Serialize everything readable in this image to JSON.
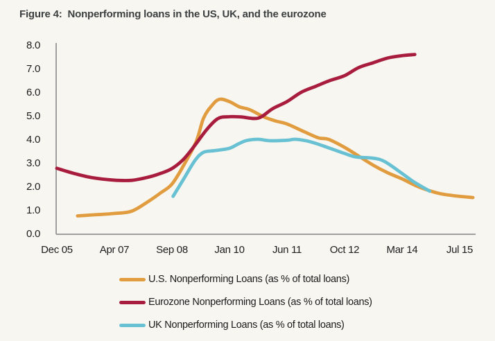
{
  "title": "Figure 4:  Nonperforming loans in the US, UK, and the eurozone",
  "colors": {
    "background": "#F8F6F1",
    "title_text": "#3C4040",
    "axis_line": "#9E9E9E",
    "axis_text": "#1C1C1C",
    "us_line": "#E09C3E",
    "eurozone_line": "#A81C3D",
    "uk_line": "#68C1D3"
  },
  "chart_data": {
    "type": "line",
    "title": "Figure 4: Nonperforming loans in the US, UK, and the eurozone",
    "xlabel": "",
    "ylabel": "",
    "ylim": [
      0,
      8
    ],
    "y_tick_labels": [
      "0.0",
      "1.0",
      "2.0",
      "3.0",
      "4.0",
      "5.0",
      "6.0",
      "7.0",
      "8.0"
    ],
    "x_tick_labels": [
      "Dec 05",
      "Apr 07",
      "Sep 08",
      "Jan 10",
      "Jun 11",
      "Oct 12",
      "Mar 14",
      "Jul 15"
    ],
    "x_unit_note": "x values of points are in x-axis tick intervals: 0 = Dec 05, 1 = Apr 07, ... 7 = Jul 15; values are percent of total loans",
    "grid": false,
    "legend_position": "bottom",
    "series": [
      {
        "name": "U.S. Nonperforming Loans (as % of total loans)",
        "slug": "us",
        "color": "#E09C3E",
        "points": [
          [
            0.36,
            0.75
          ],
          [
            0.61,
            0.79
          ],
          [
            0.98,
            0.85
          ],
          [
            1.3,
            0.95
          ],
          [
            1.6,
            1.38
          ],
          [
            1.8,
            1.72
          ],
          [
            2.0,
            2.1
          ],
          [
            2.2,
            2.88
          ],
          [
            2.42,
            3.9
          ],
          [
            2.55,
            4.9
          ],
          [
            2.7,
            5.45
          ],
          [
            2.83,
            5.7
          ],
          [
            3.0,
            5.6
          ],
          [
            3.17,
            5.38
          ],
          [
            3.35,
            5.26
          ],
          [
            3.6,
            4.95
          ],
          [
            3.8,
            4.78
          ],
          [
            4.0,
            4.65
          ],
          [
            4.3,
            4.32
          ],
          [
            4.55,
            4.06
          ],
          [
            4.72,
            4.0
          ],
          [
            5.0,
            3.66
          ],
          [
            5.25,
            3.28
          ],
          [
            5.5,
            2.9
          ],
          [
            5.75,
            2.58
          ],
          [
            6.0,
            2.32
          ],
          [
            6.3,
            1.97
          ],
          [
            6.65,
            1.7
          ],
          [
            7.0,
            1.58
          ],
          [
            7.23,
            1.53
          ]
        ]
      },
      {
        "name": "Eurozone Nonperforming Loans (as % of total loans)",
        "slug": "eurozone",
        "color": "#A81C3D",
        "points": [
          [
            0.0,
            2.77
          ],
          [
            0.3,
            2.55
          ],
          [
            0.6,
            2.38
          ],
          [
            0.98,
            2.27
          ],
          [
            1.3,
            2.26
          ],
          [
            1.6,
            2.4
          ],
          [
            1.8,
            2.55
          ],
          [
            2.0,
            2.76
          ],
          [
            2.2,
            3.15
          ],
          [
            2.4,
            3.75
          ],
          [
            2.6,
            4.4
          ],
          [
            2.8,
            4.88
          ],
          [
            3.0,
            4.96
          ],
          [
            3.2,
            4.95
          ],
          [
            3.5,
            4.9
          ],
          [
            3.75,
            5.3
          ],
          [
            4.0,
            5.6
          ],
          [
            4.25,
            6.0
          ],
          [
            4.5,
            6.25
          ],
          [
            4.75,
            6.5
          ],
          [
            5.0,
            6.7
          ],
          [
            5.25,
            7.05
          ],
          [
            5.5,
            7.25
          ],
          [
            5.75,
            7.45
          ],
          [
            6.0,
            7.55
          ],
          [
            6.22,
            7.6
          ]
        ]
      },
      {
        "name": "UK Nonperforming Loans (as % of total loans)",
        "slug": "uk",
        "color": "#68C1D3",
        "points": [
          [
            2.02,
            1.58
          ],
          [
            2.2,
            2.3
          ],
          [
            2.4,
            3.1
          ],
          [
            2.55,
            3.45
          ],
          [
            2.75,
            3.52
          ],
          [
            3.0,
            3.62
          ],
          [
            3.15,
            3.8
          ],
          [
            3.3,
            3.95
          ],
          [
            3.5,
            4.0
          ],
          [
            3.7,
            3.94
          ],
          [
            4.0,
            3.96
          ],
          [
            4.15,
            4.0
          ],
          [
            4.4,
            3.9
          ],
          [
            4.7,
            3.66
          ],
          [
            5.0,
            3.4
          ],
          [
            5.2,
            3.25
          ],
          [
            5.5,
            3.2
          ],
          [
            5.7,
            3.05
          ],
          [
            6.0,
            2.55
          ],
          [
            6.2,
            2.2
          ],
          [
            6.48,
            1.8
          ]
        ]
      }
    ]
  }
}
